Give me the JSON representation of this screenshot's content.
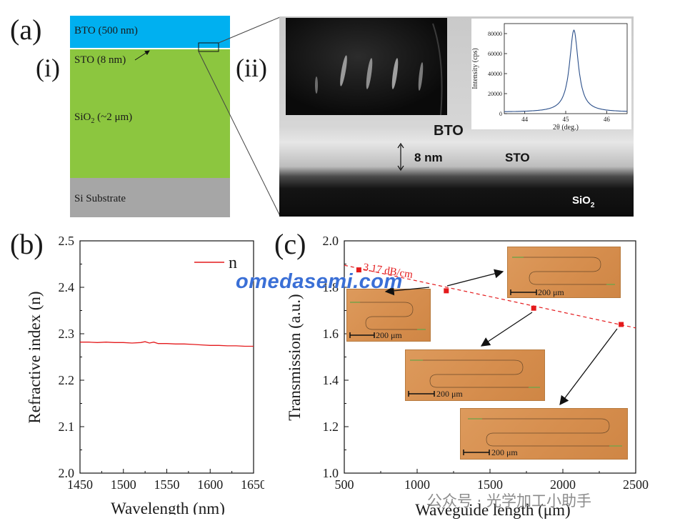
{
  "panel_a": {
    "label": "(a)",
    "sub_i": "(i)",
    "sub_ii": "(ii)",
    "layers": [
      {
        "name": "BTO (500 nm)",
        "color": "#00b0f0"
      },
      {
        "name": "STO (8 nm)",
        "color": "#ffffff"
      },
      {
        "name_main": "SiO",
        "name_sub": "2",
        "name_rest": " (~2 μm)",
        "color": "#8cc63f"
      },
      {
        "name": "Si Substrate",
        "color": "#a6a6a6"
      }
    ],
    "tem": {
      "bto_label": "BTO",
      "sto_label": "STO",
      "thickness_label": "8 nm",
      "sio2_main": "SiO",
      "sio2_sub": "2"
    },
    "xrd_inset": {
      "xlabel": "2θ (deg.)",
      "ylabel": "Intensity (cps)",
      "xticks": [
        44,
        45,
        46
      ],
      "yticks": [
        0,
        20000,
        40000,
        60000,
        80000
      ],
      "xlim": [
        43.5,
        46.5
      ],
      "ylim": [
        0,
        90000
      ],
      "peak_center": 45.2,
      "peak_height": 82000
    }
  },
  "panel_b": {
    "label": "(b)",
    "chart_data": {
      "type": "line",
      "xlabel": "Wavelength (nm)",
      "ylabel": "Refractive index (n)",
      "xlim": [
        1450,
        1650
      ],
      "ylim": [
        2.0,
        2.5
      ],
      "xticks": [
        1450,
        1500,
        1550,
        1600,
        1650
      ],
      "yticks": [
        2.0,
        2.1,
        2.2,
        2.3,
        2.4,
        2.5
      ],
      "legend_position": "top-right",
      "series": [
        {
          "name": "n",
          "color": "#e41a1c",
          "x": [
            1450,
            1460,
            1470,
            1480,
            1490,
            1500,
            1510,
            1520,
            1525,
            1530,
            1535,
            1540,
            1550,
            1560,
            1570,
            1580,
            1590,
            1600,
            1610,
            1620,
            1630,
            1640,
            1650
          ],
          "y": [
            2.282,
            2.282,
            2.281,
            2.282,
            2.281,
            2.281,
            2.28,
            2.281,
            2.283,
            2.28,
            2.282,
            2.279,
            2.279,
            2.278,
            2.278,
            2.277,
            2.276,
            2.275,
            2.275,
            2.274,
            2.274,
            2.273,
            2.273
          ]
        }
      ]
    }
  },
  "panel_c": {
    "label": "(c)",
    "annotation": "3.17 dB/cm",
    "chart_data": {
      "type": "scatter",
      "xlabel": "Waveguide length (μm)",
      "ylabel": "Transmission (a.u.)",
      "xlim": [
        500,
        2500
      ],
      "ylim": [
        1.0,
        2.0
      ],
      "xticks": [
        500,
        1000,
        1500,
        2000,
        2500
      ],
      "yticks": [
        1.0,
        1.2,
        1.4,
        1.6,
        1.8,
        2.0
      ],
      "series": [
        {
          "x": [
            600,
            1200,
            1800,
            2400
          ],
          "y": [
            1.875,
            1.785,
            1.71,
            1.64
          ],
          "color": "#e41a1c"
        }
      ],
      "fit_line": {
        "x": [
          500,
          2500
        ],
        "y": [
          1.895,
          1.625
        ],
        "color": "#e41a1c"
      }
    },
    "micrographs": [
      {
        "scale": "200 μm"
      },
      {
        "scale": "200 μm"
      },
      {
        "scale": "200 μm"
      },
      {
        "scale": "200 μm"
      }
    ]
  },
  "watermark": "omedasemi.com",
  "wechat": "公众号 · 光学加工小助手"
}
